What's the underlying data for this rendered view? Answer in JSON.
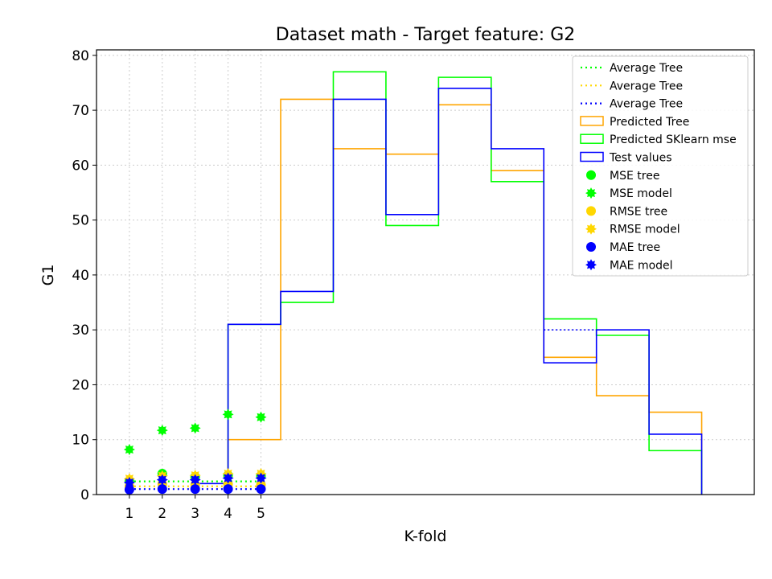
{
  "chart_data": {
    "type": "line",
    "title": "Dataset math - Target feature: G2",
    "xlabel": "K-fold",
    "ylabel": "G1",
    "xlim": [
      0.0,
      20.0
    ],
    "ylim": [
      0,
      81
    ],
    "x_ticks": [
      1,
      2,
      3,
      4,
      5
    ],
    "y_ticks": [
      0,
      10,
      20,
      30,
      40,
      50,
      60,
      70,
      80
    ],
    "grid": true,
    "legend_position": "top-right",
    "colors": {
      "green": "#00ff00",
      "gold": "#ffd700",
      "blue": "#0000ff",
      "orange": "#ffa500"
    },
    "legend": [
      {
        "label": "Average Tree",
        "kind": "dotted-line",
        "color": "#00ff00"
      },
      {
        "label": "Average Tree",
        "kind": "dotted-line",
        "color": "#ffd700"
      },
      {
        "label": "Average Tree",
        "kind": "dotted-line",
        "color": "#0000ff"
      },
      {
        "label": "Predicted Tree",
        "kind": "box",
        "color": "#ffa500"
      },
      {
        "label": "Predicted SKlearn mse",
        "kind": "box",
        "color": "#00ff00"
      },
      {
        "label": "Test values",
        "kind": "box",
        "color": "#0000ff"
      },
      {
        "label": "MSE tree",
        "kind": "circle",
        "color": "#00ff00"
      },
      {
        "label": "MSE model",
        "kind": "star",
        "color": "#00ff00"
      },
      {
        "label": "RMSE tree",
        "kind": "circle",
        "color": "#ffd700"
      },
      {
        "label": "RMSE model",
        "kind": "star",
        "color": "#ffd700"
      },
      {
        "label": "MAE tree",
        "kind": "circle",
        "color": "#0000ff"
      },
      {
        "label": "MAE model",
        "kind": "star",
        "color": "#0000ff"
      }
    ],
    "step_edges": [
      4.0,
      5.6,
      7.2,
      8.8,
      10.4,
      12.0,
      13.6,
      15.2,
      16.8,
      18.4
    ],
    "step_series": [
      {
        "name": "Predicted Tree",
        "color": "#ffa500",
        "values": [
          10,
          72,
          63,
          62,
          71,
          59,
          25,
          18,
          15
        ]
      },
      {
        "name": "Predicted SKlearn mse",
        "color": "#00ff00",
        "values": [
          31,
          35,
          77,
          49,
          76,
          57,
          32,
          29,
          8
        ]
      },
      {
        "name": "Test values",
        "color": "#0000ff",
        "values": [
          31,
          37,
          72,
          51,
          74,
          63,
          24,
          30,
          11
        ]
      }
    ],
    "test_values_leading": {
      "x": [
        3.0,
        4.0
      ],
      "y": [
        2,
        2
      ]
    },
    "average_lines": [
      {
        "name": "Average Tree",
        "color": "#00ff00",
        "x": [
          1,
          5
        ],
        "y": [
          2.4,
          2.4
        ]
      },
      {
        "name": "Average Tree",
        "color": "#ffd700",
        "x": [
          1,
          5
        ],
        "y": [
          1.5,
          1.5
        ]
      },
      {
        "name": "Average Tree",
        "color": "#0000ff",
        "x": [
          1,
          5
        ],
        "y": [
          1.0,
          1.0
        ]
      }
    ],
    "blue_dotted_segment": {
      "x": [
        13.6,
        15.2
      ],
      "y": [
        30,
        30
      ]
    },
    "folds": [
      1,
      2,
      3,
      4,
      5
    ],
    "scatter": [
      {
        "name": "MSE tree",
        "marker": "circle",
        "color": "#00ff00",
        "values": [
          2.4,
          3.8,
          3.2,
          3.5,
          3.4
        ]
      },
      {
        "name": "MSE model",
        "marker": "star",
        "color": "#00ff00",
        "values": [
          8.2,
          11.7,
          12.1,
          14.6,
          14.1
        ]
      },
      {
        "name": "RMSE tree",
        "marker": "circle",
        "color": "#ffd700",
        "values": [
          1.5,
          1.9,
          1.8,
          1.9,
          1.8
        ]
      },
      {
        "name": "RMSE model",
        "marker": "star",
        "color": "#ffd700",
        "values": [
          2.9,
          3.4,
          3.5,
          3.8,
          3.8
        ]
      },
      {
        "name": "MAE tree",
        "marker": "circle",
        "color": "#0000ff",
        "values": [
          0.9,
          1.0,
          1.0,
          1.0,
          1.0
        ]
      },
      {
        "name": "MAE model",
        "marker": "star",
        "color": "#0000ff",
        "values": [
          2.2,
          2.7,
          2.7,
          3.0,
          3.0
        ]
      }
    ]
  }
}
